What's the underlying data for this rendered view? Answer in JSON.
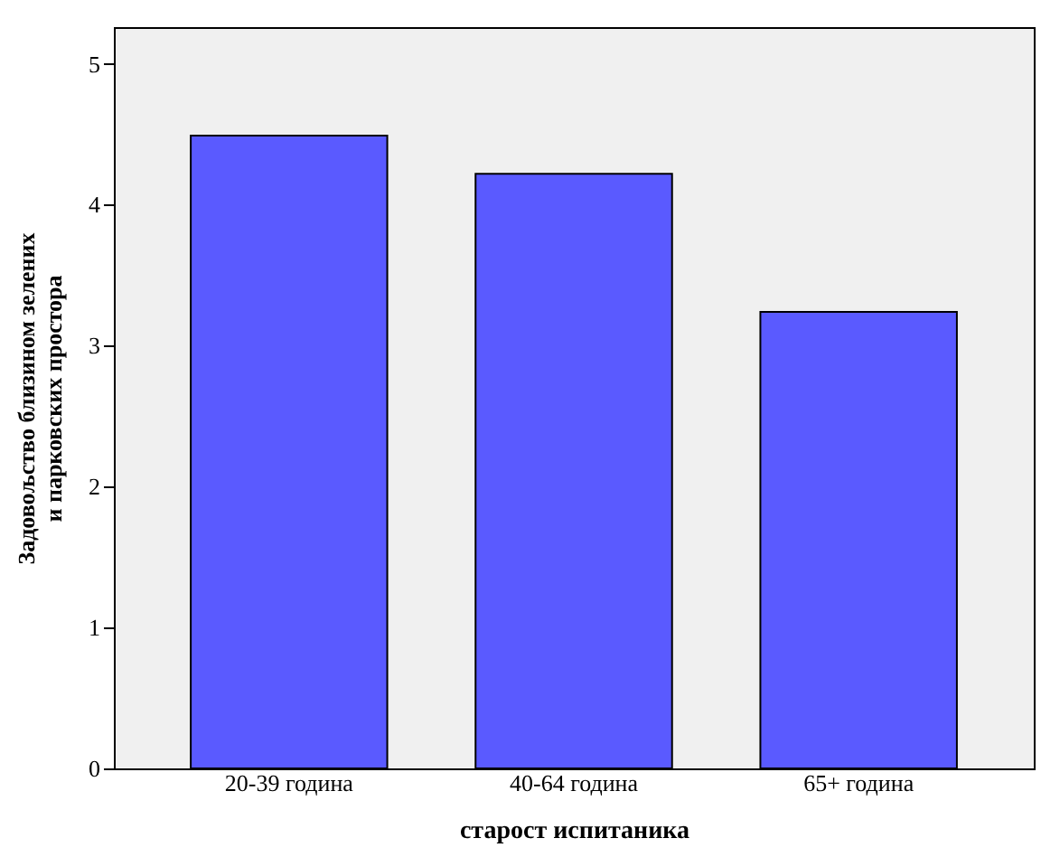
{
  "chart_data": {
    "type": "bar",
    "xlabel": "старост испитаника",
    "ylabel": "Задовољство близином зелених и парковских простора",
    "categories": [
      "20-39 година",
      "40-64 година",
      "65+ година"
    ],
    "values": [
      4.49,
      4.22,
      3.24
    ],
    "color": "#5a5aff",
    "ylim": [
      0,
      5.26
    ],
    "yticks": [
      0,
      1,
      2,
      3,
      4,
      5
    ],
    "grid": false
  }
}
